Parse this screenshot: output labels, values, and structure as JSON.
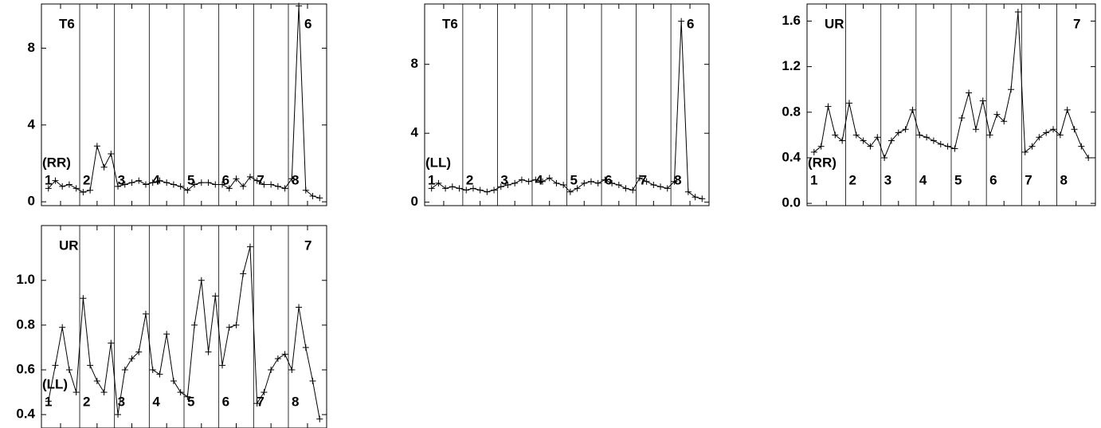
{
  "chart_data": [
    {
      "type": "line",
      "annotations": [
        "T6",
        "6",
        "(RR)"
      ],
      "segments": [
        "1",
        "2",
        "3",
        "4",
        "5",
        "6",
        "7",
        "8"
      ],
      "x": [
        1,
        2,
        3,
        4,
        5,
        6,
        7,
        8,
        9,
        10,
        11,
        12,
        13,
        14,
        15,
        16,
        17,
        18,
        19,
        20,
        21,
        22,
        23,
        24,
        25,
        26,
        27,
        28,
        29,
        30,
        31,
        32,
        33,
        34,
        35,
        36,
        37,
        38,
        39,
        40
      ],
      "values": [
        0.7,
        1.1,
        0.8,
        0.9,
        0.7,
        0.5,
        0.6,
        2.9,
        1.8,
        2.5,
        0.8,
        0.9,
        1.0,
        1.1,
        0.9,
        1.0,
        1.1,
        1.0,
        0.9,
        0.8,
        0.6,
        0.9,
        1.0,
        1.0,
        0.9,
        0.9,
        0.7,
        1.2,
        0.8,
        1.3,
        1.1,
        0.9,
        0.9,
        0.8,
        0.7,
        1.2,
        10.2,
        0.6,
        0.3,
        0.2
      ],
      "color": "#000000",
      "xlim": [
        0,
        41
      ],
      "xticks": [
        5.5,
        10.5,
        15.5,
        20.5,
        25.5,
        30.5,
        35.5
      ],
      "ylim": [
        -0.2,
        10.3
      ],
      "yticks": [
        0,
        4,
        8
      ]
    },
    {
      "type": "line",
      "annotations": [
        "T6",
        "6",
        "(LL)"
      ],
      "segments": [
        "1",
        "2",
        "3",
        "4",
        "5",
        "6",
        "7",
        "8"
      ],
      "x": [
        1,
        2,
        3,
        4,
        5,
        6,
        7,
        8,
        9,
        10,
        11,
        12,
        13,
        14,
        15,
        16,
        17,
        18,
        19,
        20,
        21,
        22,
        23,
        24,
        25,
        26,
        27,
        28,
        29,
        30,
        31,
        32,
        33,
        34,
        35,
        36,
        37,
        38,
        39,
        40
      ],
      "values": [
        0.8,
        1.1,
        0.8,
        0.9,
        0.8,
        0.7,
        0.8,
        0.7,
        0.6,
        0.7,
        0.9,
        1.0,
        1.1,
        1.3,
        1.2,
        1.3,
        1.2,
        1.4,
        1.1,
        1.0,
        0.6,
        0.8,
        1.1,
        1.2,
        1.1,
        1.3,
        1.1,
        1.0,
        0.8,
        0.7,
        1.4,
        1.2,
        1.0,
        0.9,
        0.8,
        1.2,
        10.5,
        0.6,
        0.3,
        0.2
      ],
      "color": "#000000",
      "xlim": [
        0,
        41
      ],
      "xticks": [
        5.5,
        10.5,
        15.5,
        20.5,
        25.5,
        30.5,
        35.5
      ],
      "ylim": [
        -0.2,
        11.5
      ],
      "yticks": [
        0,
        4,
        8
      ]
    },
    {
      "type": "line",
      "annotations": [
        "UR",
        "7",
        "(RR)"
      ],
      "segments": [
        "1",
        "2",
        "3",
        "4",
        "5",
        "6",
        "7",
        "8"
      ],
      "x": [
        1,
        2,
        3,
        4,
        5,
        6,
        7,
        8,
        9,
        10,
        11,
        12,
        13,
        14,
        15,
        16,
        17,
        18,
        19,
        20,
        21,
        22,
        23,
        24,
        25,
        26,
        27,
        28,
        29,
        30,
        31,
        32,
        33,
        34,
        35,
        36,
        37,
        38,
        39,
        40
      ],
      "values": [
        0.45,
        0.5,
        0.85,
        0.6,
        0.55,
        0.88,
        0.6,
        0.55,
        0.5,
        0.58,
        0.4,
        0.55,
        0.62,
        0.65,
        0.82,
        0.6,
        0.58,
        0.55,
        0.52,
        0.5,
        0.48,
        0.75,
        0.97,
        0.65,
        0.9,
        0.6,
        0.78,
        0.72,
        1.0,
        1.68,
        0.45,
        0.5,
        0.58,
        0.62,
        0.65,
        0.6,
        0.82,
        0.65,
        0.5,
        0.4
      ],
      "color": "#000000",
      "xlim": [
        0,
        41
      ],
      "xticks": [
        5.5,
        10.5,
        15.5,
        20.5,
        25.5,
        30.5,
        35.5
      ],
      "ylim": [
        -0.02,
        1.75
      ],
      "yticks": [
        {
          "value": 0,
          "label": "0.0"
        },
        0.4,
        0.8,
        1.2,
        1.6
      ]
    },
    {
      "type": "line",
      "annotations": [
        "UR",
        "7",
        "(LL)"
      ],
      "segments": [
        "1",
        "2",
        "3",
        "4",
        "5",
        "6",
        "7",
        "8"
      ],
      "x": [
        1,
        2,
        3,
        4,
        5,
        6,
        7,
        8,
        9,
        10,
        11,
        12,
        13,
        14,
        15,
        16,
        17,
        18,
        19,
        20,
        21,
        22,
        23,
        24,
        25,
        26,
        27,
        28,
        29,
        30,
        31,
        32,
        33,
        34,
        35,
        36,
        37,
        38,
        39,
        40
      ],
      "values": [
        0.46,
        0.62,
        0.79,
        0.6,
        0.5,
        0.92,
        0.62,
        0.55,
        0.5,
        0.72,
        0.4,
        0.6,
        0.65,
        0.68,
        0.85,
        0.6,
        0.58,
        0.76,
        0.55,
        0.5,
        0.48,
        0.8,
        1.0,
        0.68,
        0.93,
        0.62,
        0.79,
        0.8,
        1.03,
        1.15,
        0.45,
        0.5,
        0.6,
        0.65,
        0.67,
        0.6,
        0.88,
        0.7,
        0.55,
        0.38
      ],
      "color": "#000000",
      "xlim": [
        0,
        41
      ],
      "xticks": [
        5.5,
        10.5,
        15.5,
        20.5,
        25.5,
        30.5,
        35.5
      ],
      "ylim": [
        0.34,
        1.245
      ],
      "yticks": [
        0.4,
        0.6,
        0.8,
        {
          "value": 1,
          "label": "1.0"
        }
      ]
    }
  ]
}
